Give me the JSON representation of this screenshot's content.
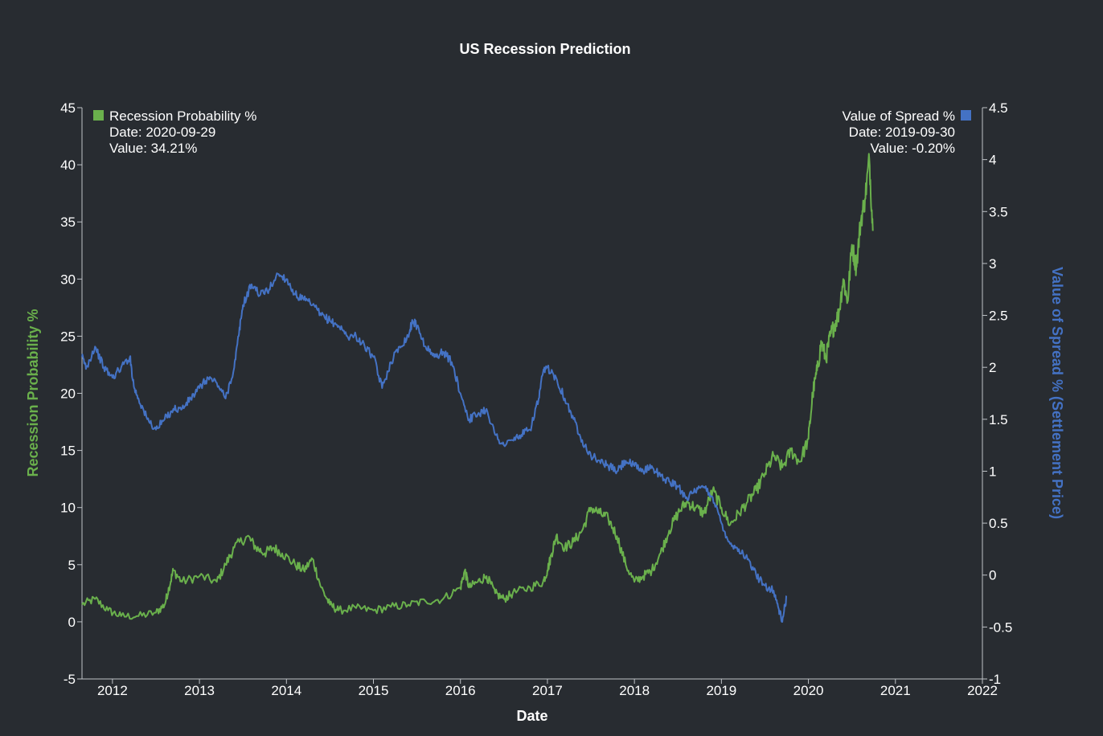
{
  "chart_data": {
    "type": "line",
    "title": "US Recession Prediction",
    "xlabel": "Date",
    "ylabel_left": "Recession Probability %",
    "ylabel_right": "Value of Spread % (Settlement Price)",
    "xlim": [
      2011.65,
      2022.0
    ],
    "ylim_left": [
      -5,
      45
    ],
    "ylim_right": [
      -1,
      4.5
    ],
    "x_ticks": [
      2012,
      2013,
      2014,
      2015,
      2016,
      2017,
      2018,
      2019,
      2020,
      2021,
      2022
    ],
    "x_tick_labels": [
      "2012",
      "2013",
      "2014",
      "2015",
      "2016",
      "2017",
      "2018",
      "2019",
      "2020",
      "2021",
      "2022"
    ],
    "y_left_ticks": [
      -5,
      0,
      5,
      10,
      15,
      20,
      25,
      30,
      35,
      40,
      45
    ],
    "y_left_tick_labels": [
      "-5",
      "0",
      "5",
      "10",
      "15",
      "20",
      "25",
      "30",
      "35",
      "40",
      "45"
    ],
    "y_right_ticks": [
      -1,
      -0.5,
      0,
      0.5,
      1,
      1.5,
      2,
      2.5,
      3,
      3.5,
      4,
      4.5
    ],
    "y_right_tick_labels": [
      "-1",
      "-0.5",
      "0",
      "0.5",
      "1",
      "1.5",
      "2",
      "2.5",
      "3",
      "3.5",
      "4",
      "4.5"
    ],
    "legend": {
      "left": {
        "name": "Recession Probability %",
        "date_label": "Date: 2020-09-29",
        "value_label": "Value: 34.21%",
        "placement": "top-left"
      },
      "right": {
        "name": "Value of Spread %",
        "date_label": "Date: 2019-09-30",
        "value_label": "Value: -0.20%",
        "placement": "top-right"
      }
    },
    "series": [
      {
        "name": "Recession Probability %",
        "axis": "left",
        "color": "#6ab04c",
        "x": [
          2011.65,
          2011.8,
          2011.95,
          2012.1,
          2012.3,
          2012.5,
          2012.6,
          2012.65,
          2012.7,
          2012.8,
          2013.0,
          2013.2,
          2013.3,
          2013.4,
          2013.55,
          2013.65,
          2013.75,
          2013.85,
          2013.95,
          2014.1,
          2014.2,
          2014.3,
          2014.4,
          2014.5,
          2014.6,
          2014.8,
          2015.0,
          2015.2,
          2015.4,
          2015.6,
          2015.8,
          2016.0,
          2016.05,
          2016.1,
          2016.2,
          2016.3,
          2016.4,
          2016.5,
          2016.6,
          2016.8,
          2016.95,
          2017.0,
          2017.05,
          2017.1,
          2017.2,
          2017.3,
          2017.4,
          2017.5,
          2017.6,
          2017.7,
          2017.8,
          2017.9,
          2018.0,
          2018.1,
          2018.2,
          2018.3,
          2018.4,
          2018.5,
          2018.6,
          2018.7,
          2018.8,
          2018.9,
          2019.0,
          2019.1,
          2019.2,
          2019.3,
          2019.4,
          2019.5,
          2019.6,
          2019.7,
          2019.8,
          2019.9,
          2020.0,
          2020.05,
          2020.1,
          2020.15,
          2020.2,
          2020.25,
          2020.3,
          2020.35,
          2020.4,
          2020.45,
          2020.5,
          2020.55,
          2020.6,
          2020.65,
          2020.7,
          2020.74
        ],
        "values": [
          1.5,
          2.0,
          1.0,
          0.5,
          0.5,
          0.8,
          1.5,
          3.0,
          4.5,
          3.5,
          4.0,
          3.5,
          5.0,
          6.5,
          7.5,
          6.5,
          6.0,
          6.5,
          6.0,
          5.0,
          4.5,
          5.5,
          3.0,
          1.5,
          1.0,
          1.2,
          1.0,
          1.3,
          1.5,
          1.8,
          2.0,
          3.0,
          4.5,
          3.0,
          3.5,
          4.0,
          2.5,
          2.0,
          2.5,
          3.0,
          3.5,
          4.5,
          6.0,
          7.5,
          6.5,
          7.0,
          8.0,
          10.0,
          9.5,
          9.0,
          7.5,
          5.0,
          3.5,
          4.0,
          4.5,
          6.0,
          8.0,
          9.5,
          10.5,
          10.0,
          9.5,
          11.5,
          10.0,
          8.5,
          9.5,
          10.5,
          11.5,
          13.0,
          14.5,
          13.5,
          15.0,
          14.0,
          16.0,
          20.0,
          22.0,
          24.5,
          23.0,
          25.0,
          26.0,
          27.0,
          30.0,
          28.0,
          33.0,
          31.0,
          35.0,
          37.0,
          40.5,
          34.21
        ]
      },
      {
        "name": "Value of Spread %",
        "axis": "right",
        "color": "#4472c4",
        "x": [
          2011.65,
          2011.7,
          2011.8,
          2011.9,
          2012.0,
          2012.1,
          2012.2,
          2012.25,
          2012.3,
          2012.4,
          2012.5,
          2012.6,
          2012.7,
          2012.8,
          2012.9,
          2013.0,
          2013.1,
          2013.2,
          2013.3,
          2013.4,
          2013.45,
          2013.5,
          2013.6,
          2013.7,
          2013.8,
          2013.9,
          2014.0,
          2014.1,
          2014.2,
          2014.3,
          2014.4,
          2014.5,
          2014.6,
          2014.7,
          2014.8,
          2014.9,
          2015.0,
          2015.1,
          2015.2,
          2015.3,
          2015.4,
          2015.45,
          2015.5,
          2015.6,
          2015.7,
          2015.8,
          2015.9,
          2016.0,
          2016.1,
          2016.2,
          2016.3,
          2016.4,
          2016.5,
          2016.6,
          2016.7,
          2016.8,
          2016.9,
          2016.95,
          2017.0,
          2017.1,
          2017.2,
          2017.3,
          2017.4,
          2017.5,
          2017.6,
          2017.7,
          2017.8,
          2017.9,
          2018.0,
          2018.1,
          2018.2,
          2018.3,
          2018.4,
          2018.5,
          2018.6,
          2018.7,
          2018.8,
          2018.9,
          2019.0,
          2019.1,
          2019.2,
          2019.3,
          2019.4,
          2019.5,
          2019.6,
          2019.65,
          2019.7,
          2019.75
        ],
        "values": [
          2.1,
          2.0,
          2.2,
          2.0,
          1.9,
          2.0,
          2.1,
          1.8,
          1.7,
          1.5,
          1.4,
          1.5,
          1.6,
          1.6,
          1.7,
          1.8,
          1.9,
          1.85,
          1.7,
          2.0,
          2.3,
          2.6,
          2.8,
          2.7,
          2.75,
          2.9,
          2.85,
          2.7,
          2.65,
          2.6,
          2.5,
          2.45,
          2.4,
          2.3,
          2.3,
          2.2,
          2.1,
          1.8,
          2.05,
          2.2,
          2.3,
          2.45,
          2.4,
          2.2,
          2.1,
          2.15,
          2.05,
          1.75,
          1.5,
          1.55,
          1.6,
          1.35,
          1.25,
          1.3,
          1.35,
          1.4,
          1.7,
          1.95,
          2.0,
          1.9,
          1.7,
          1.5,
          1.3,
          1.15,
          1.1,
          1.05,
          1.0,
          1.1,
          1.05,
          1.0,
          1.05,
          0.95,
          0.9,
          0.85,
          0.75,
          0.8,
          0.85,
          0.75,
          0.5,
          0.3,
          0.25,
          0.15,
          0.0,
          -0.1,
          -0.15,
          -0.3,
          -0.45,
          -0.2
        ]
      }
    ]
  }
}
